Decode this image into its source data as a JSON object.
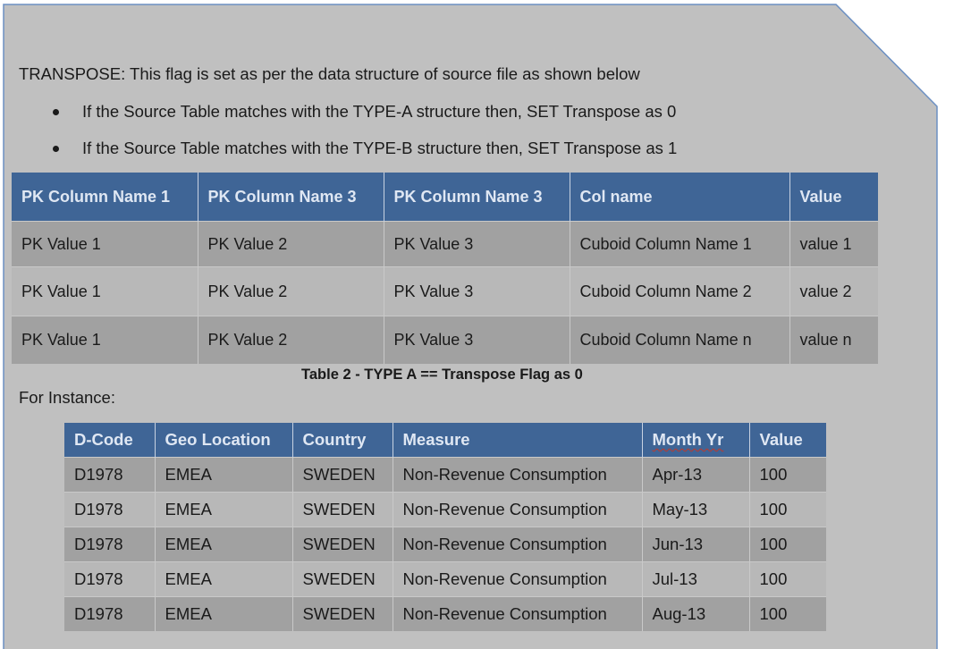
{
  "intro": "TRANSPOSE: This flag is set as per the data structure of source file as shown below",
  "bullets": [
    "If the Source Table matches with the TYPE-A structure then, SET Transpose as 0",
    "If the Source Table matches with the TYPE-B structure then, SET Transpose as 1"
  ],
  "table_a": {
    "headers": [
      "PK Column Name 1",
      "PK Column Name 3",
      "PK Column Name 3",
      "Col name",
      "Value"
    ],
    "rows": [
      [
        "PK Value 1",
        "PK Value 2",
        "PK Value 3",
        "Cuboid Column Name 1",
        "value 1"
      ],
      [
        "PK Value 1",
        "PK Value 2",
        "PK Value 3",
        "Cuboid Column Name 2",
        "value 2"
      ],
      [
        "PK Value 1",
        "PK Value 2",
        "PK Value 3",
        "Cuboid Column Name n",
        "value n"
      ]
    ],
    "caption": "Table 2 - TYPE A == Transpose Flag as 0"
  },
  "for_instance": "For Instance:",
  "table_b": {
    "headers": [
      "D-Code",
      "Geo Location",
      "Country",
      "Measure",
      "Month Yr",
      "Value"
    ],
    "rows": [
      [
        "D1978",
        "EMEA",
        "SWEDEN",
        "Non-Revenue Consumption",
        "Apr-13",
        "100"
      ],
      [
        "D1978",
        "EMEA",
        "SWEDEN",
        "Non-Revenue Consumption",
        "May-13",
        "100"
      ],
      [
        "D1978",
        "EMEA",
        "SWEDEN",
        "Non-Revenue Consumption",
        "Jun-13",
        "100"
      ],
      [
        "D1978",
        "EMEA",
        "SWEDEN",
        "Non-Revenue Consumption",
        "Jul-13",
        "100"
      ],
      [
        "D1978",
        "EMEA",
        "SWEDEN",
        "Non-Revenue Consumption",
        "Aug-13",
        "100"
      ]
    ]
  },
  "colors": {
    "page_fill": "#c0c0c0",
    "header_fill": "#3f6596",
    "header_text": "#dfe7f3",
    "row_dark": "#a1a1a1",
    "row_light": "#b8b8b8",
    "panel_border": "#6b8fc2"
  }
}
